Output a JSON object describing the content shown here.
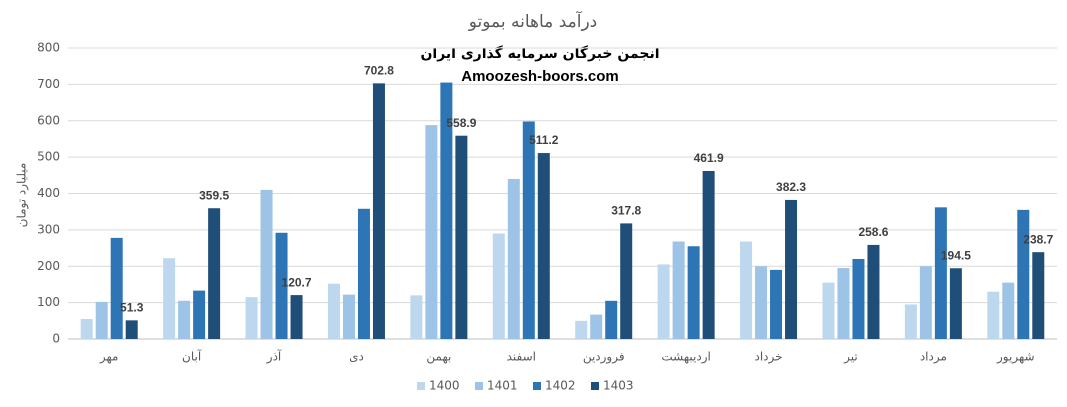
{
  "chart_data": {
    "type": "bar",
    "title": "درآمد ماهانه بموتو",
    "annotations": [
      "انجمن خبرگان سرمایه گذاری ایران",
      "Amoozesh-boors.com"
    ],
    "y_label": "میلیارد تومان",
    "categories": [
      "مهر",
      "آبان",
      "آذر",
      "دی",
      "بهمن",
      "اسفند",
      "فروردین",
      "اردیبهشت",
      "خرداد",
      "تیر",
      "مرداد",
      "شهریور"
    ],
    "series": [
      {
        "name": "1400",
        "color": "#bdd7ee",
        "values": [
          55,
          222,
          115,
          152,
          120,
          290,
          50,
          205,
          268,
          155,
          95,
          130
        ]
      },
      {
        "name": "1401",
        "color": "#9dc3e6",
        "values": [
          102,
          105,
          410,
          122,
          588,
          440,
          67,
          268,
          200,
          195,
          200,
          155
        ]
      },
      {
        "name": "1402",
        "color": "#2e75b6",
        "values": [
          278,
          133,
          292,
          358,
          705,
          598,
          105,
          255,
          190,
          220,
          362,
          355
        ]
      },
      {
        "name": "1403",
        "color": "#1f4e79",
        "values": [
          51.3,
          359.5,
          120.7,
          702.8,
          558.9,
          511.2,
          317.8,
          461.9,
          382.3,
          258.6,
          194.5,
          238.7
        ],
        "show_labels": true
      }
    ],
    "ylim": [
      0,
      800
    ],
    "yticks": [
      0,
      100,
      200,
      300,
      400,
      500,
      600,
      700,
      800
    ],
    "grid": true,
    "legend": "bottom"
  }
}
